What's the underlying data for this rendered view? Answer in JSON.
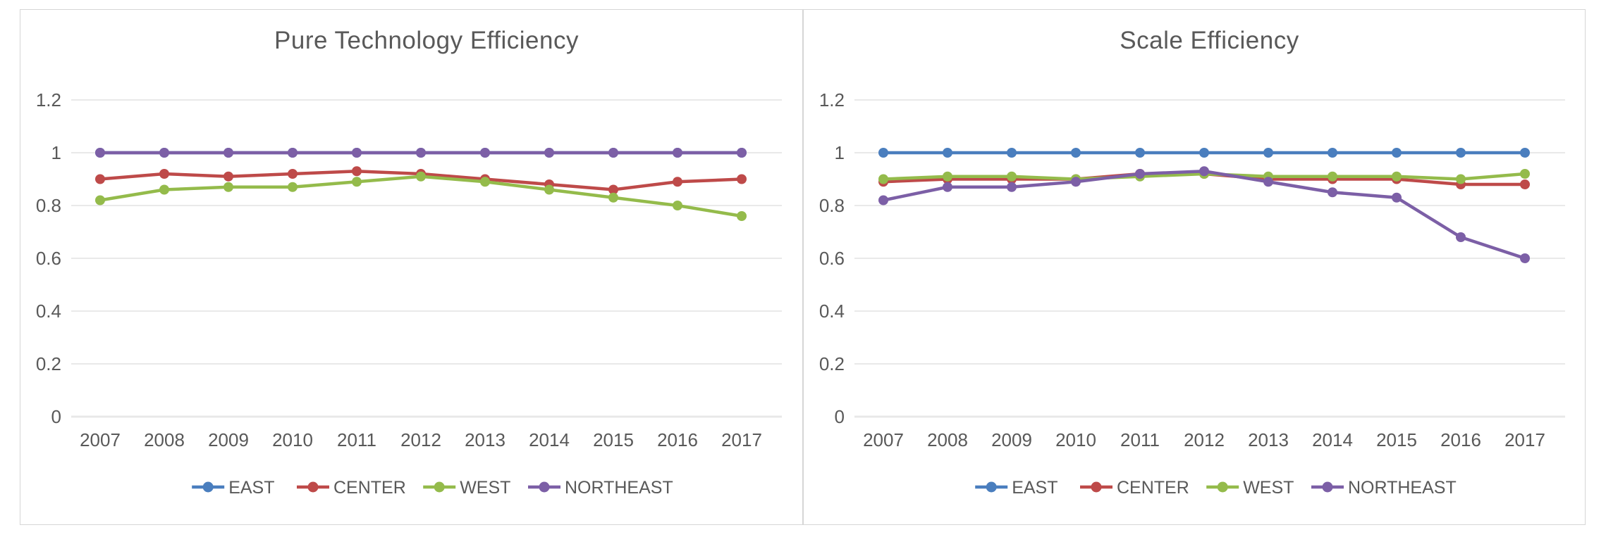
{
  "figure": {
    "background": "#ffffff",
    "border_color": "#d6d6d6",
    "gridline_color": "#e2e2e2",
    "zero_line_color": "#e8e8e8",
    "text_color": "#595959"
  },
  "chart_data": [
    {
      "type": "line",
      "title": "Pure Technology Efficiency",
      "xlabel": "",
      "ylabel": "",
      "ylim": [
        0,
        1.2
      ],
      "grid": "horizontal",
      "legend_position": "bottom",
      "yticks": [
        "1.2",
        "1",
        "0.8",
        "0.6",
        "0.4",
        "0.2",
        "0"
      ],
      "categories": [
        "2007",
        "2008",
        "2009",
        "2010",
        "2011",
        "2012",
        "2013",
        "2014",
        "2015",
        "2016",
        "2017"
      ],
      "series": [
        {
          "name": "EAST",
          "color": "#4a7ebe",
          "values": [
            1.0,
            1.0,
            1.0,
            1.0,
            1.0,
            1.0,
            1.0,
            1.0,
            1.0,
            1.0,
            1.0
          ]
        },
        {
          "name": "CENTER",
          "color": "#be4a49",
          "values": [
            0.9,
            0.92,
            0.91,
            0.92,
            0.93,
            0.92,
            0.9,
            0.88,
            0.86,
            0.89,
            0.9
          ]
        },
        {
          "name": "WEST",
          "color": "#94bb4b",
          "values": [
            0.82,
            0.86,
            0.87,
            0.87,
            0.89,
            0.91,
            0.89,
            0.86,
            0.83,
            0.8,
            0.76
          ]
        },
        {
          "name": "NORTHEAST",
          "color": "#7c5fa6",
          "values": [
            1.0,
            1.0,
            1.0,
            1.0,
            1.0,
            1.0,
            1.0,
            1.0,
            1.0,
            1.0,
            1.0
          ]
        }
      ]
    },
    {
      "type": "line",
      "title": "Scale Efficiency",
      "xlabel": "",
      "ylabel": "",
      "ylim": [
        0,
        1.2
      ],
      "grid": "horizontal",
      "legend_position": "bottom",
      "yticks": [
        "1.2",
        "1",
        "0.8",
        "0.6",
        "0.4",
        "0.2",
        "0"
      ],
      "categories": [
        "2007",
        "2008",
        "2009",
        "2010",
        "2011",
        "2012",
        "2013",
        "2014",
        "2015",
        "2016",
        "2017"
      ],
      "series": [
        {
          "name": "EAST",
          "color": "#4a7ebe",
          "values": [
            1.0,
            1.0,
            1.0,
            1.0,
            1.0,
            1.0,
            1.0,
            1.0,
            1.0,
            1.0,
            1.0
          ]
        },
        {
          "name": "CENTER",
          "color": "#be4a49",
          "values": [
            0.89,
            0.9,
            0.9,
            0.9,
            0.92,
            0.92,
            0.9,
            0.9,
            0.9,
            0.88,
            0.88
          ]
        },
        {
          "name": "WEST",
          "color": "#94bb4b",
          "values": [
            0.9,
            0.91,
            0.91,
            0.9,
            0.91,
            0.92,
            0.91,
            0.91,
            0.91,
            0.9,
            0.92
          ]
        },
        {
          "name": "NORTHEAST",
          "color": "#7c5fa6",
          "values": [
            0.82,
            0.87,
            0.87,
            0.89,
            0.92,
            0.93,
            0.89,
            0.85,
            0.83,
            0.68,
            0.6
          ]
        }
      ]
    }
  ]
}
